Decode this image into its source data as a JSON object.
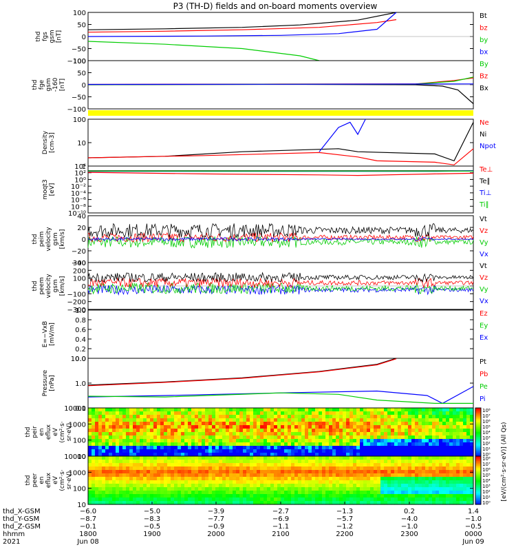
{
  "chart_data": {
    "type": "line",
    "title": "P3 (TH-D) fields and on-board moments overview",
    "panels": [
      {
        "id": "fgs",
        "ylabel_lines": [
          "thd",
          "fgs",
          "gsm",
          "[nT]"
        ],
        "yticks": [
          "100",
          "50",
          "0",
          "−50",
          "−100"
        ],
        "ylim": [
          -100,
          100
        ],
        "legend": [
          {
            "label": "Bt",
            "color": "#000000"
          },
          {
            "label": "bz",
            "color": "#ff0000"
          },
          {
            "label": "by",
            "color": "#00cc00"
          },
          {
            "label": "bx",
            "color": "#0000ff"
          }
        ],
        "series": [
          {
            "color": "#000000",
            "x": [
              0,
              0.2,
              0.4,
              0.55,
              0.7,
              0.8
            ],
            "y": [
              28,
              32,
              38,
              48,
              68,
              100
            ]
          },
          {
            "color": "#ff0000",
            "x": [
              0,
              0.2,
              0.4,
              0.6,
              0.75,
              0.8
            ],
            "y": [
              18,
              22,
              28,
              38,
              58,
              70
            ]
          },
          {
            "color": "#0000ff",
            "x": [
              0,
              0.3,
              0.5,
              0.65,
              0.75,
              0.8
            ],
            "y": [
              0,
              2,
              5,
              12,
              30,
              100
            ]
          },
          {
            "color": "#00cc00",
            "x": [
              0,
              0.2,
              0.4,
              0.55,
              0.6
            ],
            "y": [
              -20,
              -32,
              -50,
              -80,
              -100
            ]
          }
        ]
      },
      {
        "id": "fge",
        "ylabel_lines": [
          "thd",
          "fge",
          "gsm",
          "-160",
          "[nT]"
        ],
        "yticks": [
          "100",
          "50",
          "0",
          "−50",
          "−100"
        ],
        "ylim": [
          -140,
          140
        ],
        "legend": [
          {
            "label": "By",
            "color": "#00cc00"
          },
          {
            "label": "Bz",
            "color": "#ff0000"
          },
          {
            "label": "Bx",
            "color": "#000000"
          }
        ],
        "series": [
          {
            "color": "#000000",
            "x": [
              0,
              0.5,
              0.85,
              0.92,
              0.96,
              1.0
            ],
            "y": [
              0,
              3,
              0,
              -8,
              -30,
              -110
            ]
          },
          {
            "color": "#ff0000",
            "x": [
              0,
              0.5,
              0.85,
              0.95,
              1.0
            ],
            "y": [
              2,
              4,
              5,
              25,
              40
            ]
          },
          {
            "color": "#00cc00",
            "x": [
              0,
              0.5,
              0.85,
              0.95,
              1.0
            ],
            "y": [
              1,
              3,
              4,
              20,
              45
            ]
          },
          {
            "color": "#0000ff",
            "x": [
              0,
              0.5,
              1.0
            ],
            "y": [
              2,
              3,
              5
            ]
          }
        ]
      },
      {
        "id": "density",
        "ylabel_lines": [
          "Density",
          "[cm-3]"
        ],
        "yticks": [
          "100",
          "10",
          "1"
        ],
        "log": true,
        "ylim": [
          0.3,
          150
        ],
        "legend": [
          {
            "label": "Ne",
            "color": "#ff0000"
          },
          {
            "label": "Ni",
            "color": "#000000"
          },
          {
            "label": "Npot",
            "color": "#0000ff"
          }
        ],
        "series": [
          {
            "color": "#000000",
            "x": [
              0,
              0.2,
              0.4,
              0.65,
              0.7,
              0.9,
              0.95,
              1.0
            ],
            "y": [
              0.9,
              1.1,
              2.0,
              3.0,
              2.0,
              1.5,
              0.6,
              100
            ]
          },
          {
            "color": "#ff0000",
            "x": [
              0,
              0.3,
              0.6,
              0.7,
              0.75,
              0.9,
              0.95,
              1.0
            ],
            "y": [
              0.9,
              1.2,
              1.8,
              1.0,
              0.6,
              0.5,
              0.35,
              3.0
            ]
          },
          {
            "color": "#0000ff",
            "x": [
              0.6,
              0.65,
              0.68,
              0.7,
              0.72
            ],
            "y": [
              2,
              50,
              100,
              20,
              150
            ]
          }
        ]
      },
      {
        "id": "moqt3",
        "ylabel_lines": [
          "moqt3",
          "[eV]"
        ],
        "yticks": [
          "10⁴",
          "10²",
          "10⁰",
          "10⁻²",
          "10⁻⁴",
          "10⁻⁶",
          "10⁻⁸",
          "10⁻¹⁰"
        ],
        "log": true,
        "ylim": [
          1e-10,
          100000
        ],
        "legend": [
          {
            "label": "Te⊥",
            "color": "#ff0000"
          },
          {
            "label": "Te∥",
            "color": "#000000"
          },
          {
            "label": "Ti⊥",
            "color": "#0000ff"
          },
          {
            "label": "Ti∥",
            "color": "#00cc00"
          }
        ],
        "series": [
          {
            "color": "#000000",
            "x": [
              0,
              0.5,
              1.0
            ],
            "y": [
              3000,
              3000,
              3000
            ]
          },
          {
            "color": "#0000ff",
            "x": [
              0,
              0.5,
              0.9,
              1.0
            ],
            "y": [
              2000,
              2000,
              2000,
              3000
            ]
          },
          {
            "color": "#00cc00",
            "x": [
              0,
              0.5,
              1.0
            ],
            "y": [
              2500,
              2500,
              2500
            ]
          },
          {
            "color": "#ff0000",
            "x": [
              0,
              0.3,
              0.6,
              0.7,
              0.9,
              1.0
            ],
            "y": [
              1000,
              300,
              150,
              100,
              300,
              500
            ]
          }
        ]
      },
      {
        "id": "peim",
        "ylabel_lines": [
          "thd",
          "peim",
          "velocity",
          "gsm",
          "[km/s]"
        ],
        "yticks": [
          "40",
          "20",
          "0",
          "−20",
          "−40"
        ],
        "ylim": [
          -40,
          40
        ],
        "legend": [
          {
            "label": "Vt",
            "color": "#000000"
          },
          {
            "label": "Vz",
            "color": "#ff0000"
          },
          {
            "label": "Vy",
            "color": "#00cc00"
          },
          {
            "label": "Vx",
            "color": "#0000ff"
          }
        ],
        "noise": [
          {
            "color": "#00cc00",
            "base": -5,
            "amp": 10
          },
          {
            "color": "#ff0000",
            "base": 3,
            "amp": 8
          },
          {
            "color": "#000000",
            "base": 15,
            "amp": 12
          },
          {
            "color": "#0000ff",
            "base": 0,
            "amp": 3
          }
        ]
      },
      {
        "id": "peem",
        "ylabel_lines": [
          "thd",
          "peem",
          "velocity",
          "gsm",
          "[km/s]"
        ],
        "yticks": [
          "300",
          "200",
          "100",
          "0",
          "−100",
          "−200",
          "−300"
        ],
        "ylim": [
          -300,
          300
        ],
        "legend": [
          {
            "label": "Vt",
            "color": "#000000"
          },
          {
            "label": "Vz",
            "color": "#ff0000"
          },
          {
            "label": "Vy",
            "color": "#00cc00"
          },
          {
            "label": "Vx",
            "color": "#0000ff"
          }
        ],
        "noise": [
          {
            "color": "#0000ff",
            "base": -50,
            "amp": 60
          },
          {
            "color": "#00cc00",
            "base": -30,
            "amp": 70
          },
          {
            "color": "#ff0000",
            "base": 40,
            "amp": 60
          },
          {
            "color": "#000000",
            "base": 110,
            "amp": 60
          }
        ]
      },
      {
        "id": "efield",
        "ylabel_lines": [
          "E=−VxB",
          "[mV/m]"
        ],
        "yticks": [
          "1.0",
          "0.8",
          "0.6",
          "0.4",
          "0.2",
          "0.0"
        ],
        "ylim": [
          0,
          1
        ],
        "legend": [
          {
            "label": "Ez",
            "color": "#ff0000"
          },
          {
            "label": "Ey",
            "color": "#00cc00"
          },
          {
            "label": "Ex",
            "color": "#0000ff"
          }
        ]
      },
      {
        "id": "pressure",
        "ylabel_lines": [
          "Pressure",
          "[nPa]"
        ],
        "yticks": [
          "10.0",
          "1.0",
          "0.1"
        ],
        "log": true,
        "ylim": [
          0.015,
          30
        ],
        "legend": [
          {
            "label": "Pt",
            "color": "#000000"
          },
          {
            "label": "Pb",
            "color": "#ff0000"
          },
          {
            "label": "Pe",
            "color": "#00cc00"
          },
          {
            "label": "Pi",
            "color": "#0000ff"
          }
        ],
        "series": [
          {
            "color": "#000000",
            "x": [
              0,
              0.2,
              0.4,
              0.6,
              0.75,
              0.8
            ],
            "y": [
              0.5,
              0.8,
              1.5,
              4,
              12,
              30
            ]
          },
          {
            "color": "#ff0000",
            "x": [
              0,
              0.2,
              0.4,
              0.6,
              0.75,
              0.8
            ],
            "y": [
              0.45,
              0.75,
              1.4,
              3.8,
              11,
              28
            ]
          },
          {
            "color": "#0000ff",
            "x": [
              0,
              0.2,
              0.5,
              0.75,
              0.88,
              0.92,
              1.0
            ],
            "y": [
              0.08,
              0.1,
              0.15,
              0.2,
              0.1,
              0.03,
              0.4
            ]
          },
          {
            "color": "#00cc00",
            "x": [
              0,
              0.2,
              0.5,
              0.65,
              0.75,
              0.9,
              1.0
            ],
            "y": [
              0.09,
              0.08,
              0.15,
              0.12,
              0.05,
              0.03,
              0.03
            ]
          }
        ]
      },
      {
        "id": "peir",
        "ylabel_lines": [
          "thd",
          "peir",
          "en",
          "eflux",
          "eV",
          "(cm²·s·",
          "sr·eV)"
        ],
        "yticks": [
          "10000",
          "1000",
          "100",
          "10"
        ],
        "spectro": "ion"
      },
      {
        "id": "peer",
        "ylabel_lines": [
          "thd",
          "peer",
          "en",
          "eflux",
          "eV",
          "(cm²·s·",
          "sr·eV)"
        ],
        "yticks": [
          "10000",
          "1000",
          "100",
          "10"
        ],
        "spectro": "electron"
      }
    ],
    "colorbar": {
      "label": "[eV/(cm²·s·sr·eV)] (All Qs)",
      "ticks": [
        "10⁸",
        "10⁷",
        "10⁶",
        "10⁵",
        "10⁴",
        "10³",
        "10²",
        "10¹",
        "10⁰"
      ],
      "ticks2": [
        "10⁸",
        "10⁷",
        "10⁶",
        "10⁵",
        "10⁴",
        "10³",
        "10²",
        "10¹",
        "10⁰"
      ]
    },
    "xaxis": {
      "rows": [
        {
          "label": "thd_X-GSM",
          "values": [
            "−6.0",
            "−5.0",
            "−3.9",
            "−2.7",
            "−1.3",
            "0.2",
            "1.4"
          ]
        },
        {
          "label": "thd_Y-GSM",
          "values": [
            "−8.7",
            "−8.3",
            "−7.7",
            "−6.9",
            "−5.7",
            "−4.0",
            "−1.0"
          ]
        },
        {
          "label": "thd_Z-GSM",
          "values": [
            "−0.1",
            "−0.5",
            "−0.9",
            "−1.1",
            "−1.2",
            "−1.0",
            "−0.5"
          ]
        },
        {
          "label": "hhmm",
          "values": [
            "1800",
            "1900",
            "2000",
            "2100",
            "2200",
            "2300",
            "0000"
          ]
        },
        {
          "label": "2021",
          "values": [
            "Jun 08",
            "",
            "",
            "",
            "",
            "",
            "Jun 09"
          ]
        }
      ]
    }
  }
}
